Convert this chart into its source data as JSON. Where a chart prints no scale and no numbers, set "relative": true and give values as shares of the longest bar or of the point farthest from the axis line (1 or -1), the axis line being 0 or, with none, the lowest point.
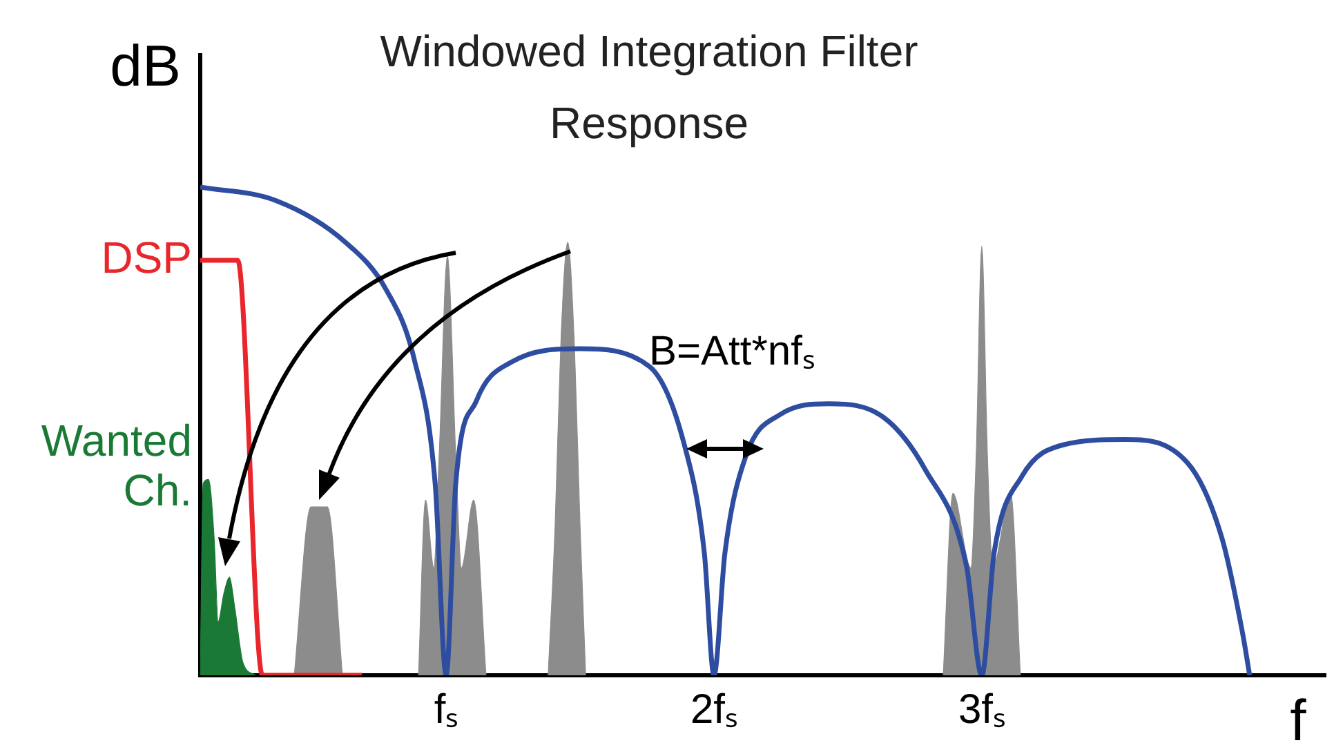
{
  "chart_data": {
    "type": "line",
    "relative": true,
    "title": "Windowed Integration Filter Response",
    "ylabel": "dB",
    "xlabel": "f",
    "annotations": [
      "B=Att*nfₛ"
    ],
    "xlim": [
      0.082,
      4.284
    ],
    "xticks": [
      {
        "value": 1,
        "label": "fₛ"
      },
      {
        "value": 2,
        "label": "2fₛ"
      },
      {
        "value": 3,
        "label": "3fₛ"
      }
    ],
    "series": [
      {
        "type": "line",
        "color": "#2e4da0",
        "x": [
          0.082,
          0.366,
          0.624,
          0.778,
          0.881,
          0.959,
          1.0,
          1.036,
          1.113,
          1.242,
          1.5,
          1.758,
          1.887,
          1.964,
          2.0,
          2.041,
          2.119,
          2.247,
          2.428,
          2.634,
          2.789,
          2.943,
          3.0,
          3.046,
          3.149,
          3.304,
          3.536,
          3.768,
          3.897,
          3.974,
          4.0
        ],
        "values": [
          1.0,
          0.972,
          0.887,
          0.788,
          0.647,
          0.393,
          0,
          0.393,
          0.562,
          0.641,
          0.669,
          0.633,
          0.477,
          0.251,
          0,
          0.251,
          0.449,
          0.534,
          0.556,
          0.528,
          0.421,
          0.223,
          0,
          0.251,
          0.407,
          0.472,
          0.483,
          0.435,
          0.28,
          0.085,
          0
        ]
      },
      {
        "type": "line",
        "name": "DSP",
        "color": "#e8262b",
        "x": [
          0.082,
          0.222,
          0.314,
          0.686
        ],
        "values": [
          0.85,
          0.85,
          0,
          0
        ]
      },
      {
        "type": "area",
        "name": "Wanted Ch.",
        "color": "#1a7a35",
        "x": [
          0.082,
          0.093,
          0.113,
          0.134,
          0.149,
          0.17,
          0.191,
          0.211,
          0.242,
          0.289
        ],
        "values": [
          0,
          0.393,
          0.401,
          0.28,
          0.11,
          0.167,
          0.201,
          0.138,
          0.025,
          0
        ]
      },
      {
        "type": "area",
        "color": "#8c8c8c",
        "x": [
          0.433,
          0.495,
          0.557,
          0.613
        ],
        "values": [
          0,
          0.345,
          0.345,
          0
        ]
      },
      {
        "type": "area",
        "color": "#8c8c8c",
        "x": [
          0.897,
          0.923,
          0.954,
          0.974,
          1.005,
          1.036,
          1.057,
          1.103,
          1.149
        ],
        "values": [
          0,
          0.359,
          0.22,
          0.45,
          0.859,
          0.45,
          0.22,
          0.359,
          0
        ]
      },
      {
        "type": "area",
        "color": "#8c8c8c",
        "x": [
          1.381,
          1.407,
          1.428,
          1.454,
          1.479,
          1.5,
          1.521
        ],
        "values": [
          0,
          0.308,
          0.675,
          0.887,
          0.675,
          0.308,
          0
        ]
      },
      {
        "type": "area",
        "color": "#8c8c8c",
        "x": [
          2.856,
          2.892,
          2.959,
          2.979,
          3.0,
          3.021,
          3.041,
          3.108,
          3.144
        ],
        "values": [
          0,
          0.373,
          0.22,
          0.45,
          0.879,
          0.45,
          0.22,
          0.373,
          0
        ]
      }
    ]
  }
}
